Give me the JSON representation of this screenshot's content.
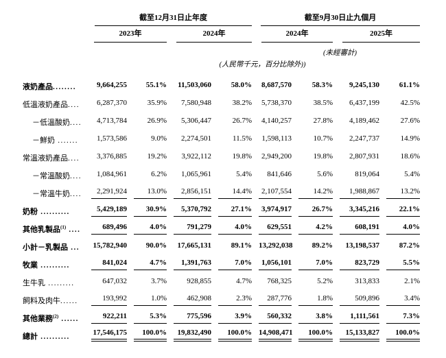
{
  "table": {
    "header": {
      "group1": "截至12月31日止年度",
      "group2": "截至9月30日止九個月",
      "years": [
        "2023年",
        "2024年",
        "2024年",
        "2025年"
      ],
      "unaudited_note": "(未經審計)",
      "currency_note": "(人民幣千元，百分比除外))"
    },
    "rows": [
      {
        "label": "液奶產品",
        "sup": "",
        "dots": "........",
        "indent": 0,
        "bold": true,
        "underline": false,
        "double_underline": false,
        "values": [
          "9,664,255",
          "55.1%",
          "11,503,060",
          "58.0%",
          "8,687,570",
          "58.3%",
          "9,245,130",
          "61.1%"
        ]
      },
      {
        "label": "低溫液奶產品",
        "sup": "",
        "dots": "....",
        "indent": 0,
        "bold": false,
        "underline": false,
        "double_underline": false,
        "values": [
          "6,287,370",
          "35.9%",
          "7,580,948",
          "38.2%",
          "5,738,370",
          "38.5%",
          "6,437,199",
          "42.5%"
        ]
      },
      {
        "label": "－低溫酸奶",
        "sup": "",
        "dots": "....",
        "indent": 1,
        "bold": false,
        "underline": false,
        "double_underline": false,
        "values": [
          "4,713,784",
          "26.9%",
          "5,306,447",
          "26.7%",
          "4,140,257",
          "27.8%",
          "4,189,462",
          "27.6%"
        ]
      },
      {
        "label": "－鮮奶",
        "sup": "",
        "dots": " .......",
        "indent": 1,
        "bold": false,
        "underline": false,
        "double_underline": false,
        "values": [
          "1,573,586",
          "9.0%",
          "2,274,501",
          "11.5%",
          "1,598,113",
          "10.7%",
          "2,247,737",
          "14.9%"
        ]
      },
      {
        "label": "常溫液奶產品",
        "sup": "",
        "dots": "....",
        "indent": 0,
        "bold": false,
        "underline": false,
        "double_underline": false,
        "values": [
          "3,376,885",
          "19.2%",
          "3,922,112",
          "19.8%",
          "2,949,200",
          "19.8%",
          "2,807,931",
          "18.6%"
        ]
      },
      {
        "label": "－常溫酸奶",
        "sup": "",
        "dots": "....",
        "indent": 1,
        "bold": false,
        "underline": false,
        "double_underline": false,
        "values": [
          "1,084,961",
          "6.2%",
          "1,065,961",
          "5.4%",
          "841,646",
          "5.6%",
          "819,064",
          "5.4%"
        ]
      },
      {
        "label": "－常溫牛奶",
        "sup": "",
        "dots": "....",
        "indent": 1,
        "bold": false,
        "underline": true,
        "double_underline": false,
        "values": [
          "2,291,924",
          "13.0%",
          "2,856,151",
          "14.4%",
          "2,107,554",
          "14.2%",
          "1,988,867",
          "13.2%"
        ]
      },
      {
        "label": "奶粉",
        "sup": "",
        "dots": " ..........",
        "indent": 0,
        "bold": true,
        "underline": true,
        "double_underline": false,
        "values": [
          "5,429,189",
          "30.9%",
          "5,370,792",
          "27.1%",
          "3,974,917",
          "26.7%",
          "3,345,216",
          "22.1%"
        ]
      },
      {
        "label": "其他乳製品",
        "sup": "(1)",
        "dots": " ....",
        "indent": 0,
        "bold": true,
        "underline": true,
        "double_underline": false,
        "values": [
          "689,496",
          "4.0%",
          "791,279",
          "4.0%",
          "629,551",
          "4.2%",
          "608,191",
          "4.0%"
        ]
      },
      {
        "label": "小計－乳製品",
        "sup": "",
        "dots": " ...",
        "indent": 0,
        "bold": true,
        "underline": false,
        "double_underline": false,
        "values": [
          "15,782,940",
          "90.0%",
          "17,665,131",
          "89.1%",
          "13,292,038",
          "89.2%",
          "13,198,537",
          "87.2%"
        ]
      },
      {
        "label": "牧業",
        "sup": "",
        "dots": " ..........",
        "indent": 0,
        "bold": true,
        "underline": true,
        "double_underline": false,
        "values": [
          "841,024",
          "4.7%",
          "1,391,763",
          "7.0%",
          "1,056,101",
          "7.0%",
          "823,729",
          "5.5%"
        ]
      },
      {
        "label": "生牛乳",
        "sup": "",
        "dots": " .........",
        "indent": 0,
        "bold": false,
        "underline": false,
        "double_underline": false,
        "values": [
          "647,032",
          "3.7%",
          "928,855",
          "4.7%",
          "768,325",
          "5.2%",
          "313,833",
          "2.1%"
        ]
      },
      {
        "label": "飼料及肉牛",
        "sup": "",
        "dots": "......",
        "indent": 0,
        "bold": false,
        "underline": true,
        "double_underline": false,
        "values": [
          "193,992",
          "1.0%",
          "462,908",
          "2.3%",
          "287,776",
          "1.8%",
          "509,896",
          "3.4%"
        ]
      },
      {
        "label": "其他業務",
        "sup": "(2)",
        "dots": " ......",
        "indent": 0,
        "bold": true,
        "underline": true,
        "double_underline": false,
        "values": [
          "922,211",
          "5.3%",
          "775,596",
          "3.9%",
          "560,332",
          "3.8%",
          "1,111,561",
          "7.3%"
        ]
      },
      {
        "label": "總計",
        "sup": "",
        "dots": " ..........",
        "indent": 0,
        "bold": true,
        "underline": false,
        "double_underline": true,
        "values": [
          "17,546,175",
          "100.0%",
          "19,832,490",
          "100.0%",
          "14,908,471",
          "100.0%",
          "15,133,827",
          "100.0%"
        ]
      }
    ]
  }
}
